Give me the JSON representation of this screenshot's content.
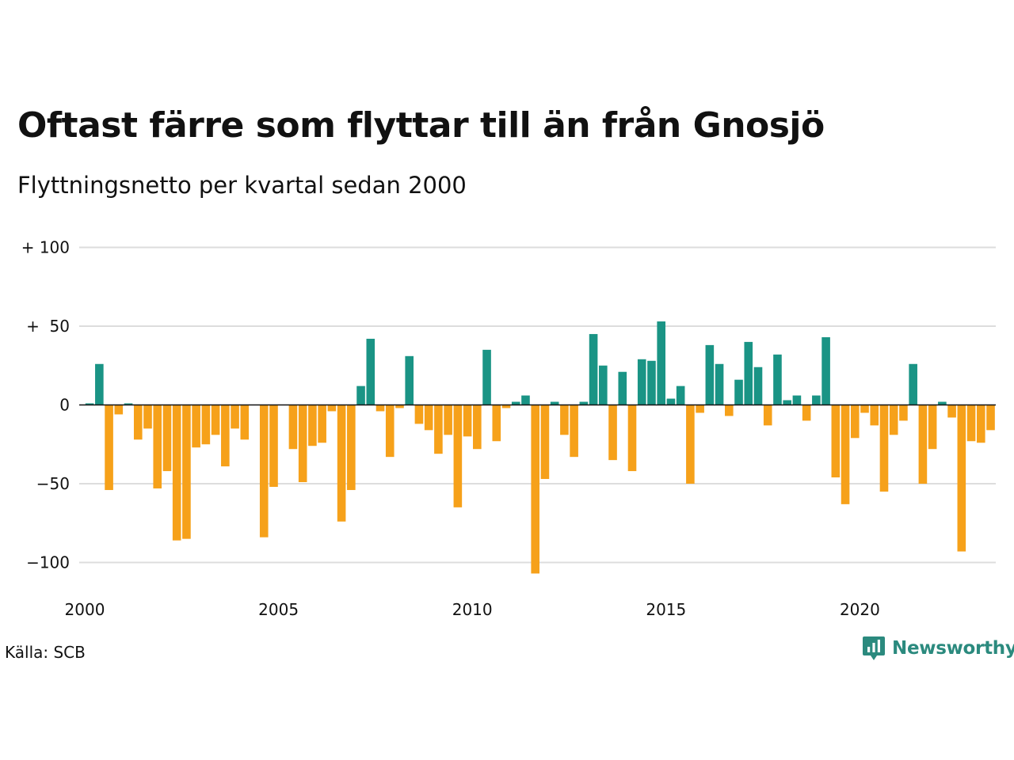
{
  "title": "Oftast färre som flyttar till än från Gnosjö",
  "subtitle": "Flyttningsnetto per kvartal sedan 2000",
  "source": "Källa: SCB",
  "brand": "Newsworthy",
  "colors": {
    "positive": "#1a9485",
    "negative": "#f6a11a",
    "grid": "#dddddd",
    "zero_line": "#111111",
    "brand": "#2b8a7e"
  },
  "chart_data": {
    "type": "bar",
    "title": "Oftast färre som flyttar till än från Gnosjö",
    "subtitle": "Flyttningsnetto per kvartal sedan 2000",
    "x_start": "2000-Q1",
    "ylim": [
      -110,
      110
    ],
    "yticks": [
      {
        "value": 100,
        "label": "+ 100"
      },
      {
        "value": 50,
        "label": "+  50"
      },
      {
        "value": 0,
        "label": "0"
      },
      {
        "value": -50,
        "label": "−50"
      },
      {
        "value": -100,
        "label": "−100"
      }
    ],
    "xticks": [
      {
        "year": 2000,
        "label": "2000"
      },
      {
        "year": 2005,
        "label": "2005"
      },
      {
        "year": 2010,
        "label": "2010"
      },
      {
        "year": 2015,
        "label": "2015"
      },
      {
        "year": 2020,
        "label": "2020"
      }
    ],
    "grid": true,
    "legend": "none",
    "values": [
      1,
      26,
      -54,
      -6,
      1,
      -22,
      -15,
      -53,
      -42,
      -86,
      -85,
      -27,
      -25,
      -19,
      -39,
      -15,
      -22,
      0,
      -84,
      -52,
      0,
      -28,
      -49,
      -26,
      -24,
      -4,
      -74,
      -54,
      12,
      42,
      -4,
      -33,
      -2,
      31,
      -12,
      -16,
      -31,
      -19,
      -65,
      -20,
      -28,
      35,
      -23,
      -2,
      2,
      6,
      -107,
      -47,
      2,
      -19,
      -33,
      2,
      45,
      25,
      -35,
      21,
      -42,
      29,
      28,
      53,
      4,
      12,
      -50,
      -5,
      38,
      26,
      -7,
      16,
      40,
      24,
      -13,
      32,
      3,
      6,
      -10,
      6,
      43,
      -46,
      -63,
      -21,
      -5,
      -13,
      -55,
      -19,
      -10,
      26,
      -50,
      -28,
      2,
      -8,
      -93,
      -23,
      -24,
      -16
    ]
  }
}
